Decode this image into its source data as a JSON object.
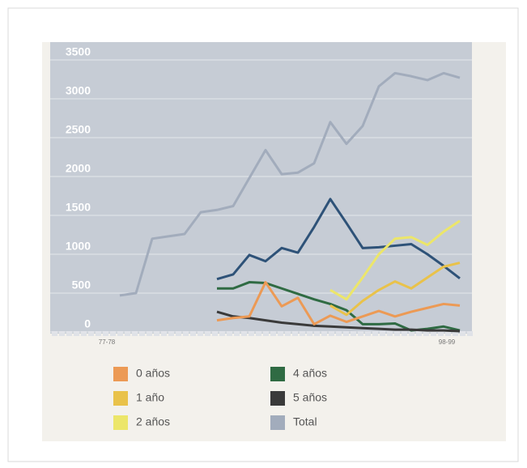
{
  "chart_data": {
    "type": "line",
    "categories": [
      "77-78",
      null,
      null,
      null,
      null,
      null,
      null,
      null,
      null,
      null,
      null,
      null,
      null,
      null,
      null,
      null,
      null,
      null,
      null,
      null,
      null,
      "98-99"
    ],
    "series": [
      {
        "name": "Total",
        "color": "#a2acbc",
        "values": [
          470,
          500,
          1200,
          1230,
          1260,
          1540,
          1570,
          1620,
          1980,
          2340,
          2030,
          2050,
          2170,
          2700,
          2420,
          2650,
          3160,
          3330,
          3290,
          3240,
          3330,
          3270
        ]
      },
      {
        "name": null,
        "color": "#2e5278",
        "values": [
          null,
          null,
          null,
          null,
          null,
          null,
          680,
          740,
          990,
          910,
          1080,
          1020,
          1350,
          1710,
          1400,
          1080,
          1090,
          1110,
          1130,
          1000,
          850,
          690
        ]
      },
      {
        "name": "4 años",
        "color": "#2f6b43",
        "values": [
          null,
          null,
          null,
          null,
          null,
          null,
          560,
          560,
          640,
          630,
          560,
          490,
          420,
          360,
          280,
          100,
          100,
          110,
          20,
          40,
          70,
          20
        ]
      },
      {
        "name": "5 años",
        "color": "#3a3a3a",
        "values": [
          null,
          null,
          null,
          null,
          null,
          null,
          260,
          200,
          180,
          150,
          120,
          100,
          80,
          70,
          60,
          50,
          40,
          30,
          30,
          20,
          20,
          10
        ]
      },
      {
        "name": "0 años",
        "color": "#ec9a55",
        "values": [
          null,
          null,
          null,
          null,
          null,
          null,
          150,
          180,
          200,
          640,
          330,
          440,
          100,
          210,
          130,
          200,
          270,
          200,
          260,
          310,
          360,
          340
        ]
      },
      {
        "name": "1 año",
        "color": "#e9c24a",
        "values": [
          null,
          null,
          null,
          null,
          null,
          null,
          null,
          null,
          null,
          null,
          null,
          null,
          null,
          340,
          220,
          400,
          540,
          650,
          560,
          700,
          840,
          890
        ]
      },
      {
        "name": "2 años",
        "color": "#ece66a",
        "values": [
          null,
          null,
          null,
          null,
          null,
          null,
          null,
          null,
          null,
          null,
          null,
          null,
          null,
          540,
          420,
          700,
          1000,
          1200,
          1220,
          1120,
          1290,
          1430
        ]
      }
    ],
    "ylim": [
      0,
      3500
    ],
    "yticks": [
      0,
      500,
      1000,
      1500,
      2000,
      2500,
      3000,
      3500
    ],
    "grid": true
  }
}
